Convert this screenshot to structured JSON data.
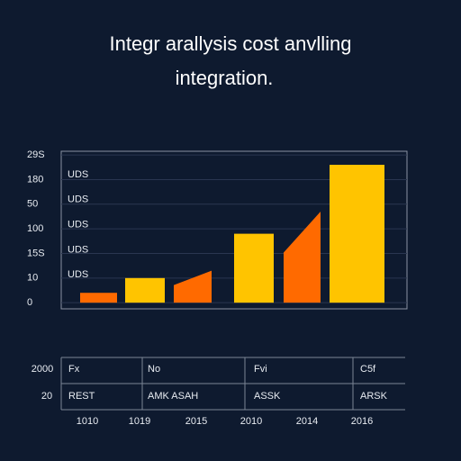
{
  "chart_data": {
    "type": "bar",
    "title": "Integr arallysis cost anvlling",
    "subtitle": "integration.",
    "categories": [
      "1010",
      "1019",
      "2015",
      "2010",
      "2014",
      "2016"
    ],
    "values": [
      0.4,
      1.0,
      1.3,
      2.8,
      3.7,
      5.6
    ],
    "colors": [
      "#ff6a00",
      "#ffc400",
      "#ff6a00",
      "#ffc400",
      "#ff6a00",
      "#ffc400"
    ],
    "bar_shapes": [
      "rect",
      "rect",
      "slant",
      "rect",
      "slant",
      "rect"
    ],
    "ylim": [
      -0.25,
      6.15
    ],
    "yticks": [
      0,
      {
        "value": 1,
        "label": "10"
      },
      {
        "value": 2,
        "label": "15S"
      },
      {
        "value": 3,
        "label": "100"
      },
      {
        "value": 4,
        "label": "50"
      },
      {
        "value": 5,
        "label": "180"
      },
      {
        "value": 6,
        "label": "29S"
      }
    ],
    "annotations": [
      "UDS",
      "UDS",
      "UDS",
      "UDS",
      "UDS"
    ],
    "grid": true
  },
  "table": {
    "row_labels": [
      "2000",
      "20"
    ],
    "rows": [
      [
        "Fx",
        "No",
        "Fvi",
        "C5f"
      ],
      [
        "REST",
        "AMK ASAH",
        "ASSK",
        "ARSK"
      ]
    ]
  }
}
